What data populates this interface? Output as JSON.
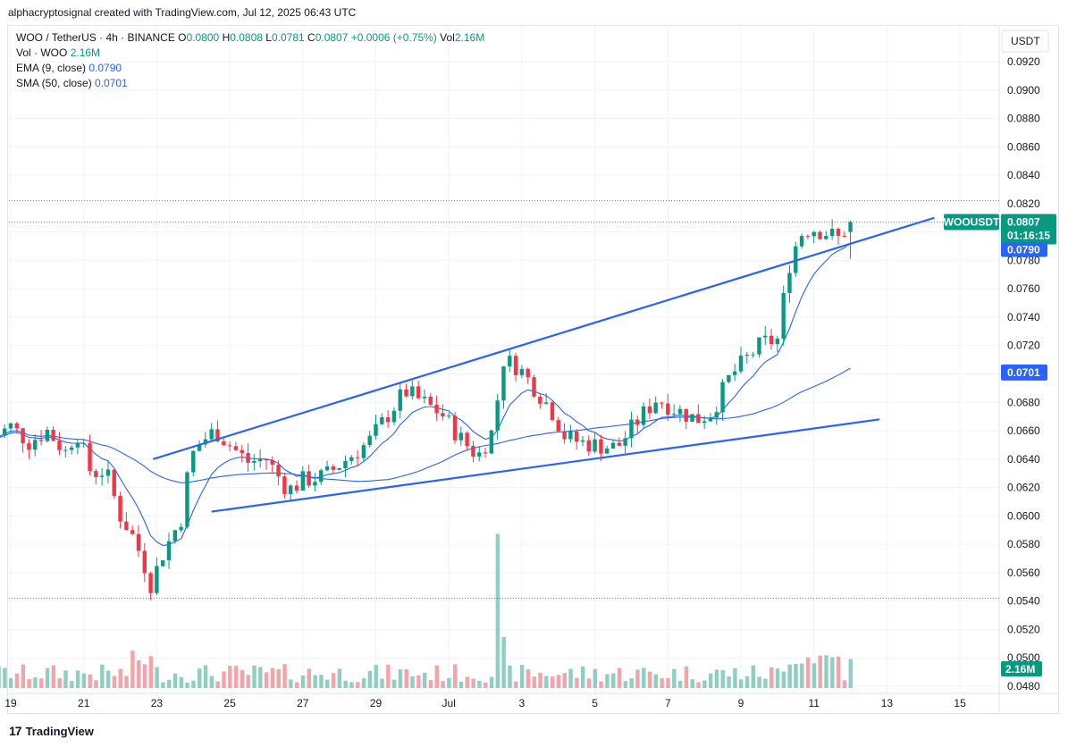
{
  "attribution": "alphacryptosignal created with TradingView.com, Jul 12, 2025 06:43 UTC",
  "legend": {
    "symbol": "WOO / TetherUS · 4h · BINANCE",
    "o_label": "O",
    "o": "0.0800",
    "h_label": "H",
    "h": "0.0808",
    "l_label": "L",
    "l": "0.0781",
    "c_label": "C",
    "c": "0.0807",
    "change": "+0.0006 (+0.75%)",
    "vol_label": "Vol",
    "vol": "2.16M",
    "vol_woo_label": "Vol · WOO",
    "vol_woo": "2.16M",
    "ema_label": "EMA (9, close)",
    "ema": "0.0790",
    "sma_label": "SMA (50, close)",
    "sma": "0.0701"
  },
  "currency": "USDT",
  "footer": {
    "logo": "17",
    "brand": "TradingView"
  },
  "colors": {
    "up": "#089981",
    "down": "#f23645",
    "vol_up": "#8ecfc2",
    "vol_down": "#f5a3a8",
    "trendline": "#2962ff",
    "ema": "#2962ff",
    "sma": "#2962ff"
  },
  "chart_data": {
    "type": "candlestick",
    "y_ticks": [
      "0.0920",
      "0.0900",
      "0.0880",
      "0.0860",
      "0.0840",
      "0.0820",
      "0.0800",
      "0.0780",
      "0.0760",
      "0.0740",
      "0.0720",
      "0.0700",
      "0.0680",
      "0.0660",
      "0.0640",
      "0.0620",
      "0.0600",
      "0.0580",
      "0.0560",
      "0.0540",
      "0.0520",
      "0.0500",
      "0.0480"
    ],
    "ylim": [
      0.0476,
      0.0932
    ],
    "x_ticks": [
      "19",
      "21",
      "23",
      "25",
      "27",
      "29",
      "Jul",
      "3",
      "5",
      "7",
      "9",
      "11",
      "13",
      "15"
    ],
    "price_tags": {
      "symbol": "WOOUSDT",
      "last": "0.0807",
      "countdown": "01:16:15",
      "ema": "0.0790",
      "sma": "0.0701",
      "volume": "2.16M"
    },
    "dotted_levels": [
      0.0822,
      0.0807,
      0.0542
    ],
    "anchors": [
      {
        "day": 18.5,
        "p": 0.0655
      },
      {
        "day": 19.0,
        "p": 0.0663
      },
      {
        "day": 19.5,
        "p": 0.0652
      },
      {
        "day": 20.0,
        "p": 0.066
      },
      {
        "day": 20.5,
        "p": 0.0645
      },
      {
        "day": 20.8,
        "p": 0.066
      },
      {
        "day": 21.2,
        "p": 0.063
      },
      {
        "day": 21.6,
        "p": 0.0632
      },
      {
        "day": 22.0,
        "p": 0.06
      },
      {
        "day": 22.3,
        "p": 0.0588
      },
      {
        "day": 22.6,
        "p": 0.057
      },
      {
        "day": 22.85,
        "p": 0.0551
      },
      {
        "day": 23.1,
        "p": 0.057
      },
      {
        "day": 23.4,
        "p": 0.0585
      },
      {
        "day": 23.7,
        "p": 0.06
      },
      {
        "day": 23.9,
        "p": 0.064
      },
      {
        "day": 24.2,
        "p": 0.0652
      },
      {
        "day": 24.6,
        "p": 0.066
      },
      {
        "day": 25.0,
        "p": 0.065
      },
      {
        "day": 25.5,
        "p": 0.0638
      },
      {
        "day": 26.0,
        "p": 0.064
      },
      {
        "day": 26.6,
        "p": 0.0618
      },
      {
        "day": 27.0,
        "p": 0.0625
      },
      {
        "day": 27.6,
        "p": 0.0628
      },
      {
        "day": 28.2,
        "p": 0.064
      },
      {
        "day": 28.8,
        "p": 0.0652
      },
      {
        "day": 29.3,
        "p": 0.067
      },
      {
        "day": 29.8,
        "p": 0.0688
      },
      {
        "day": 30.3,
        "p": 0.068
      },
      {
        "day": 30.8,
        "p": 0.0672
      },
      {
        "day": 31.3,
        "p": 0.0655
      },
      {
        "day": 31.8,
        "p": 0.0642
      },
      {
        "day": 32.2,
        "p": 0.066
      },
      {
        "day": 32.5,
        "p": 0.071
      },
      {
        "day": 32.9,
        "p": 0.0705
      },
      {
        "day": 33.3,
        "p": 0.0692
      },
      {
        "day": 33.8,
        "p": 0.0675
      },
      {
        "day": 34.2,
        "p": 0.0655
      },
      {
        "day": 34.6,
        "p": 0.0652
      },
      {
        "day": 35.0,
        "p": 0.065
      },
      {
        "day": 35.6,
        "p": 0.0648
      },
      {
        "day": 36.2,
        "p": 0.0668
      },
      {
        "day": 36.7,
        "p": 0.0683
      },
      {
        "day": 37.2,
        "p": 0.0675
      },
      {
        "day": 37.8,
        "p": 0.0668
      },
      {
        "day": 38.2,
        "p": 0.0673
      },
      {
        "day": 38.7,
        "p": 0.0698
      },
      {
        "day": 39.2,
        "p": 0.0712
      },
      {
        "day": 39.6,
        "p": 0.0722
      },
      {
        "day": 40.0,
        "p": 0.0724
      },
      {
        "day": 40.3,
        "p": 0.0775
      },
      {
        "day": 40.6,
        "p": 0.0798
      },
      {
        "day": 40.9,
        "p": 0.0803
      },
      {
        "day": 41.3,
        "p": 0.08
      },
      {
        "day": 41.7,
        "p": 0.0795
      },
      {
        "day": 42.0,
        "p": 0.0807
      }
    ],
    "volume_ylim": [
      0,
      5.0
    ],
    "volume_scale_unit": "M"
  }
}
